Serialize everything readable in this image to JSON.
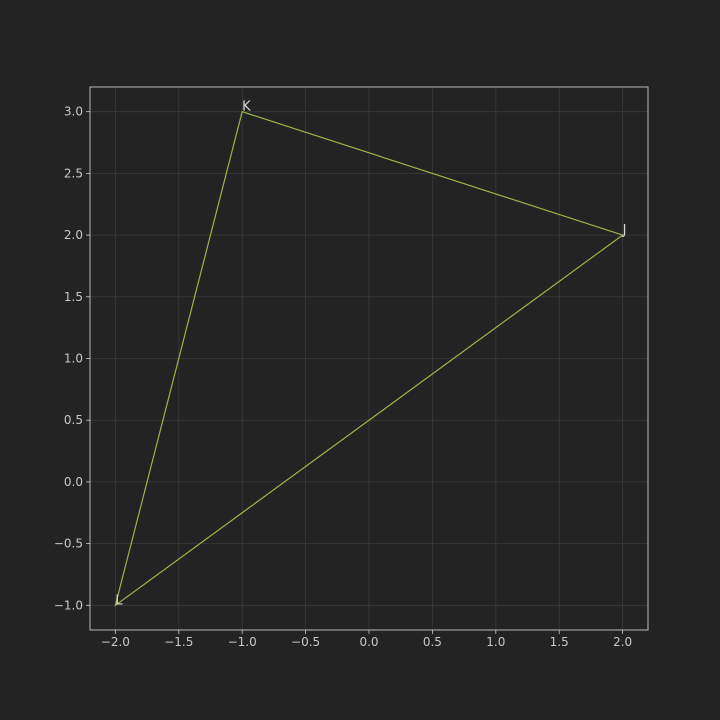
{
  "chart_data": {
    "type": "line",
    "title": "",
    "xlabel": "",
    "ylabel": "",
    "xlim": [
      -2.2,
      2.2
    ],
    "ylim": [
      -1.2,
      3.2
    ],
    "xticks": [
      -2.0,
      -1.5,
      -1.0,
      -0.5,
      0.0,
      0.5,
      1.0,
      1.5,
      2.0
    ],
    "yticks": [
      -1.0,
      -0.5,
      0.0,
      0.5,
      1.0,
      1.5,
      2.0,
      2.5,
      3.0
    ],
    "xtick_labels": [
      "−2.0",
      "−1.5",
      "−1.0",
      "−0.5",
      "0.0",
      "0.5",
      "1.0",
      "1.5",
      "2.0"
    ],
    "ytick_labels": [
      "−1.0",
      "−0.5",
      "0.0",
      "0.5",
      "1.0",
      "1.5",
      "2.0",
      "2.5",
      "3.0"
    ],
    "grid": true,
    "legend": "none",
    "series": [
      {
        "closed": true,
        "color": "#9bb54a",
        "points": [
          {
            "label": "J",
            "x": 2.0,
            "y": 2.0
          },
          {
            "label": "K",
            "x": -1.0,
            "y": 3.0
          },
          {
            "label": "L",
            "x": -2.0,
            "y": -1.0
          }
        ]
      }
    ]
  },
  "colors": {
    "background": "#232323",
    "grid": "#3a3a3a",
    "frame": "#b8b8b8",
    "text": "#c8c8c8",
    "line": "#9bb54a"
  }
}
